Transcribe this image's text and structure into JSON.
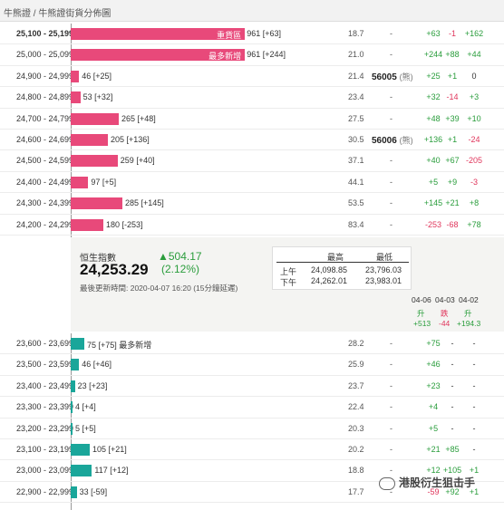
{
  "header": {
    "title": "牛熊證 / 牛熊證街貨分佈圖"
  },
  "top_rows": [
    {
      "range": "25,100 - 25,199",
      "bar_value": 961,
      "color": "pink",
      "inlabel": "重貨區",
      "label": "961 [+63]",
      "c1": "18.7",
      "c2": "-",
      "tag": "",
      "c3": "+63",
      "c4": "-1",
      "c5": "+162",
      "bold": true
    },
    {
      "range": "25,000 - 25,099",
      "bar_value": 961,
      "color": "pink",
      "inlabel": "最多新增",
      "label": "961 [+244]",
      "c1": "21.0",
      "c2": "-",
      "tag": "",
      "c3": "+244",
      "c4": "+88",
      "c5": "+44"
    },
    {
      "range": "24,900 - 24,999",
      "bar_value": 46,
      "color": "pink",
      "inlabel": "",
      "label": "46 [+25]",
      "c1": "21.4",
      "c2": "",
      "tag": "56005",
      "tag_suffix": "(熊)",
      "c3": "+25",
      "c4": "+1",
      "c5": "0"
    },
    {
      "range": "24,800 - 24,899",
      "bar_value": 53,
      "color": "pink",
      "inlabel": "",
      "label": "53 [+32]",
      "c1": "23.4",
      "c2": "-",
      "tag": "",
      "c3": "+32",
      "c4": "-14",
      "c5": "+3"
    },
    {
      "range": "24,700 - 24,799",
      "bar_value": 265,
      "color": "pink",
      "inlabel": "",
      "label": "265 [+48]",
      "c1": "27.5",
      "c2": "-",
      "tag": "",
      "c3": "+48",
      "c4": "+39",
      "c5": "+10"
    },
    {
      "range": "24,600 - 24,699",
      "bar_value": 205,
      "color": "pink",
      "inlabel": "",
      "label": "205 [+136]",
      "c1": "30.5",
      "c2": "",
      "tag": "56006",
      "tag_suffix": "(熊)",
      "c3": "+136",
      "c4": "+1",
      "c5": "-24"
    },
    {
      "range": "24,500 - 24,599",
      "bar_value": 259,
      "color": "pink",
      "inlabel": "",
      "label": "259 [+40]",
      "c1": "37.1",
      "c2": "-",
      "tag": "",
      "c3": "+40",
      "c4": "+67",
      "c5": "-205"
    },
    {
      "range": "24,400 - 24,499",
      "bar_value": 97,
      "color": "pink",
      "inlabel": "",
      "label": "97 [+5]",
      "c1": "44.1",
      "c2": "-",
      "tag": "",
      "c3": "+5",
      "c4": "+9",
      "c5": "-3"
    },
    {
      "range": "24,300 - 24,399",
      "bar_value": 285,
      "color": "pink",
      "inlabel": "",
      "label": "285 [+145]",
      "c1": "53.5",
      "c2": "-",
      "tag": "",
      "c3": "+145",
      "c4": "+21",
      "c5": "+8"
    },
    {
      "range": "24,200 - 24,299",
      "bar_value": 180,
      "color": "pink",
      "inlabel": "",
      "label": "180 [-253]",
      "c1": "83.4",
      "c2": "-",
      "tag": "",
      "c3": "-253",
      "c4": "-68",
      "c5": "+78"
    }
  ],
  "info": {
    "label": "恒生指數",
    "value": "24,253.29",
    "change": "▲504.17",
    "pct": "(2.12%)",
    "updated": "最後更新時間: 2020-04-07 16:20 (15分鐘延遲)",
    "hl_header_high": "最高",
    "hl_header_low": "最低",
    "am_label": "上午",
    "am_high": "24,098.85",
    "am_low": "23,796.03",
    "pm_label": "下午",
    "pm_high": "24,262.01",
    "pm_low": "23,983.01",
    "dates": [
      "04-06",
      "04-03",
      "04-02"
    ],
    "date_dirs": [
      "升",
      "跌",
      "升"
    ],
    "date_vals": [
      "+513",
      "-44",
      "+194.3"
    ]
  },
  "bottom_rows": [
    {
      "range": "23,600 - 23,699",
      "bar_value": 75,
      "color": "teal",
      "label": "75 [+75] 最多新增",
      "c1": "28.2",
      "c2": "-",
      "c3": "+75",
      "c4": "-",
      "c5": "-"
    },
    {
      "range": "23,500 - 23,599",
      "bar_value": 46,
      "color": "teal",
      "label": "46 [+46]",
      "c1": "25.9",
      "c2": "-",
      "c3": "+46",
      "c4": "-",
      "c5": "-"
    },
    {
      "range": "23,400 - 23,499",
      "bar_value": 23,
      "color": "teal",
      "label": "23 [+23]",
      "c1": "23.7",
      "c2": "-",
      "c3": "+23",
      "c4": "-",
      "c5": "-"
    },
    {
      "range": "23,300 - 23,399",
      "bar_value": 4,
      "color": "teal",
      "label": "4 [+4]",
      "c1": "22.4",
      "c2": "-",
      "c3": "+4",
      "c4": "-",
      "c5": "-"
    },
    {
      "range": "23,200 - 23,299",
      "bar_value": 5,
      "color": "teal",
      "label": "5 [+5]",
      "c1": "20.3",
      "c2": "-",
      "c3": "+5",
      "c4": "-",
      "c5": "-"
    },
    {
      "range": "23,100 - 23,199",
      "bar_value": 105,
      "color": "teal",
      "label": "105 [+21]",
      "c1": "20.2",
      "c2": "-",
      "c3": "+21",
      "c4": "+85",
      "c5": "-"
    },
    {
      "range": "23,000 - 23,099",
      "bar_value": 117,
      "color": "teal",
      "label": "117 [+12]",
      "c1": "18.8",
      "c2": "-",
      "c3": "+12",
      "c4": "+105",
      "c5": "+1"
    },
    {
      "range": "22,900 - 22,999",
      "bar_value": 33,
      "color": "teal",
      "label": "33 [-59]",
      "c1": "17.7",
      "c2": "-",
      "c3": "-59",
      "c4": "+92",
      "c5": "+1"
    }
  ],
  "watermark": "港股衍生狙击手"
}
